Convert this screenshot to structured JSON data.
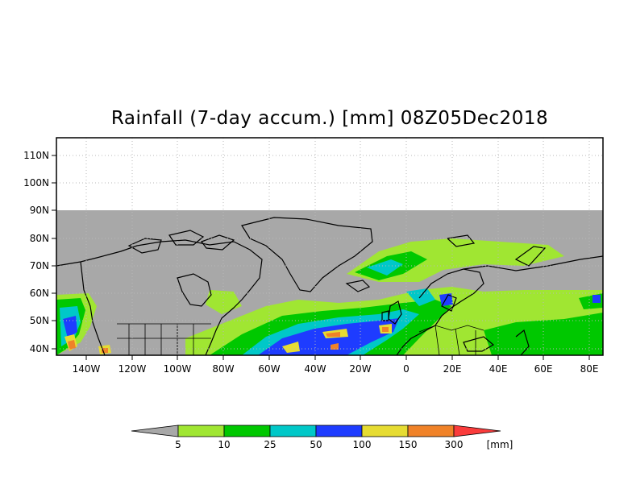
{
  "title": "Rainfall (7-day accum.) [mm] 08Z05Dec2018",
  "map": {
    "lat_ticks": [
      "110N",
      "100N",
      "90N",
      "80N",
      "70N",
      "60N",
      "50N",
      "40N"
    ],
    "lon_ticks": [
      "140W",
      "120W",
      "100W",
      "80W",
      "60W",
      "40W",
      "20W",
      "0",
      "20E",
      "40E",
      "60E",
      "80E"
    ]
  },
  "colorbar": {
    "labels": [
      "5",
      "10",
      "25",
      "50",
      "100",
      "150",
      "300"
    ],
    "unit": "[mm]",
    "colors": {
      "below_5": "#a8a8a8",
      "5-10": "#a0e632",
      "10-25": "#00c800",
      "25-50": "#00c8c8",
      "50-100": "#1e3cff",
      "100-150": "#e6dc32",
      "150-300": "#f08228",
      "above_300": "#fa3c3c"
    }
  }
}
